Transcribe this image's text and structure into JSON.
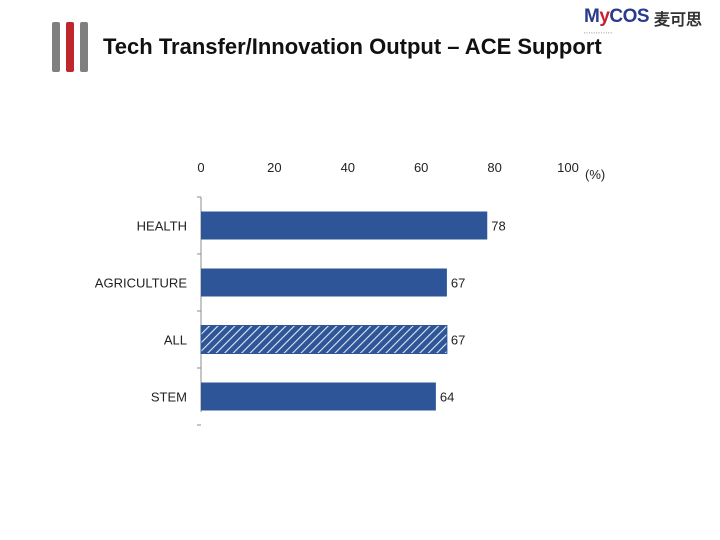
{
  "slide": {
    "title": "Tech Transfer/Innovation Output – ACE Support",
    "logo": {
      "brand": "MyCOS",
      "brand_cn": "麦可思",
      "accent_color": "#c8202f",
      "text_color": "#2b3a8c"
    }
  },
  "colors": {
    "bar": "#2e5597",
    "deco_gray": "#7f7f7f",
    "deco_red": "#c0272d"
  },
  "chart_data": {
    "type": "bar",
    "orientation": "horizontal",
    "title": "",
    "categories": [
      "HEALTH",
      "AGRICULTURE",
      "ALL",
      "STEM"
    ],
    "values": [
      78,
      67,
      67,
      64
    ],
    "highlight_category": "ALL",
    "highlight_pattern": "diagonal-hatch",
    "xlim": [
      0,
      100
    ],
    "xticks": [
      0,
      20,
      40,
      60,
      80,
      100
    ],
    "x_unit": "(%)",
    "xlabel": "",
    "ylabel": "",
    "axis_position": "top",
    "grid": false,
    "legend": "none"
  }
}
